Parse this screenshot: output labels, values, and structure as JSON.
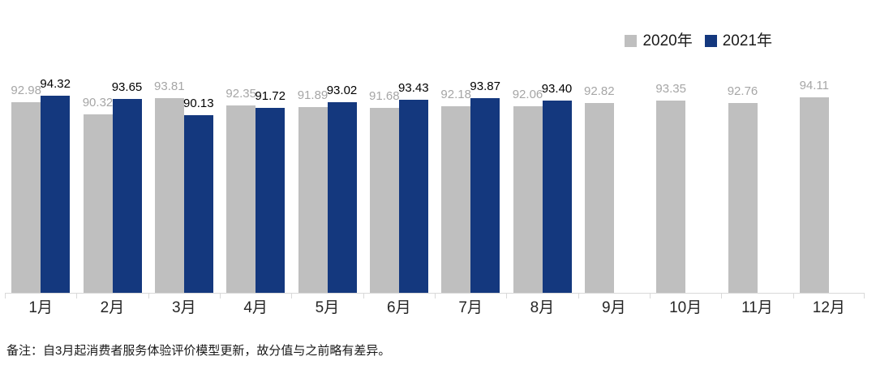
{
  "chart_data": {
    "type": "bar",
    "title": "",
    "categories": [
      "1月",
      "2月",
      "3月",
      "4月",
      "5月",
      "6月",
      "7月",
      "8月",
      "9月",
      "10月",
      "11月",
      "12月"
    ],
    "series": [
      {
        "name": "2020年",
        "color": "#BFBFBF",
        "label_color": "#A6A6A6",
        "values": [
          92.98,
          90.32,
          93.81,
          92.35,
          91.89,
          91.68,
          92.18,
          92.06,
          92.82,
          93.35,
          92.76,
          94.11
        ]
      },
      {
        "name": "2021年",
        "color": "#14387E",
        "label_color": "#000000",
        "values": [
          94.32,
          93.65,
          90.13,
          91.72,
          93.02,
          93.43,
          93.87,
          93.4,
          null,
          null,
          null,
          null
        ]
      }
    ],
    "ylim": [
      52,
      101
    ],
    "grid": false,
    "legend_position": "top-right",
    "value_labels": true,
    "axis_color": "#D9D9D9"
  },
  "legend": {
    "items": [
      {
        "label": "2020年",
        "color": "#BFBFBF"
      },
      {
        "label": "2021年",
        "color": "#14387E"
      }
    ]
  },
  "note": "备注：自3月起消费者服务体验评价模型更新，故分值与之前略有差异。"
}
